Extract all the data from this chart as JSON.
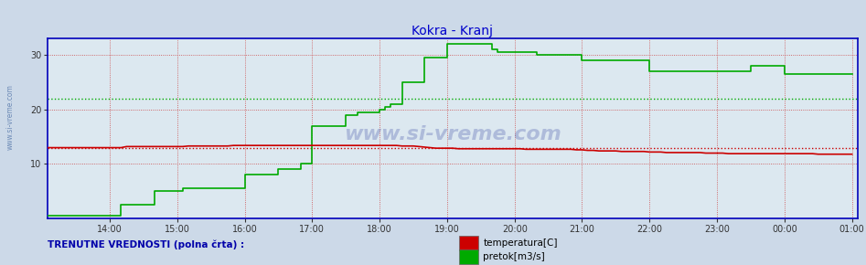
{
  "title": "Kokra - Kranj",
  "title_color": "#0000cc",
  "bg_color": "#ccd9e8",
  "plot_bg_color": "#dce8f0",
  "ylim": [
    0,
    33
  ],
  "yticks": [
    10,
    20,
    30
  ],
  "xtick_labels": [
    "14:00",
    "15:00",
    "16:00",
    "17:00",
    "18:00",
    "19:00",
    "20:00",
    "21:00",
    "22:00",
    "23:00",
    "00:00",
    "01:00"
  ],
  "xtick_positions": [
    14,
    15,
    16,
    17,
    18,
    19,
    20,
    21,
    22,
    23,
    24,
    25
  ],
  "xlim": [
    13.08,
    25.08
  ],
  "grid_color": "#cc4444",
  "hline_red_y": 13.0,
  "hline_green_y": 22.0,
  "watermark": "www.si-vreme.com",
  "legend_text1": "temperatura[C]",
  "legend_text2": "pretok[m3/s]",
  "legend_color1": "#cc0000",
  "legend_color2": "#00aa00",
  "footer_text": "TRENUTNE VREDNOSTI (polna črta) :",
  "axis_color": "#0000bb",
  "red_x": [
    13.0,
    13.083,
    13.167,
    13.25,
    13.333,
    13.417,
    13.5,
    13.583,
    13.667,
    13.75,
    13.833,
    13.917,
    14.0,
    14.083,
    14.167,
    14.25,
    14.333,
    14.417,
    14.5,
    14.583,
    14.667,
    14.75,
    14.833,
    14.917,
    15.0,
    15.083,
    15.167,
    15.25,
    15.333,
    15.417,
    15.5,
    15.583,
    15.667,
    15.75,
    15.833,
    15.917,
    16.0,
    16.083,
    16.167,
    16.25,
    16.333,
    16.417,
    16.5,
    16.583,
    16.667,
    16.75,
    16.833,
    16.917,
    17.0,
    17.083,
    17.167,
    17.25,
    17.333,
    17.417,
    17.5,
    17.583,
    17.667,
    17.75,
    17.833,
    17.917,
    18.0,
    18.083,
    18.167,
    18.25,
    18.333,
    18.417,
    18.5,
    18.583,
    18.667,
    18.75,
    18.833,
    18.917,
    19.0,
    19.083,
    19.167,
    19.25,
    19.333,
    19.417,
    19.5,
    19.583,
    19.667,
    19.75,
    19.833,
    19.917,
    20.0,
    20.083,
    20.167,
    20.25,
    20.333,
    20.417,
    20.5,
    20.583,
    20.667,
    20.75,
    20.833,
    20.917,
    21.0,
    21.083,
    21.167,
    21.25,
    21.333,
    21.417,
    21.5,
    21.583,
    21.667,
    21.75,
    21.833,
    21.917,
    22.0,
    22.083,
    22.167,
    22.25,
    22.333,
    22.417,
    22.5,
    22.583,
    22.667,
    22.75,
    22.833,
    22.917,
    23.0,
    23.083,
    23.167,
    23.25,
    23.333,
    23.417,
    23.5,
    23.583,
    23.667,
    23.75,
    23.833,
    23.917,
    24.0,
    24.083,
    24.167,
    24.25,
    24.333,
    24.417,
    24.5,
    24.583,
    24.667,
    24.75,
    24.833,
    24.917,
    25.0
  ],
  "red_y": [
    13.0,
    13.0,
    13.0,
    13.0,
    13.0,
    13.0,
    13.0,
    13.0,
    13.0,
    13.0,
    13.0,
    13.0,
    13.0,
    13.0,
    13.0,
    13.2,
    13.2,
    13.2,
    13.2,
    13.2,
    13.2,
    13.2,
    13.2,
    13.2,
    13.2,
    13.2,
    13.3,
    13.3,
    13.3,
    13.3,
    13.3,
    13.3,
    13.3,
    13.3,
    13.4,
    13.4,
    13.4,
    13.4,
    13.4,
    13.4,
    13.4,
    13.4,
    13.4,
    13.4,
    13.4,
    13.4,
    13.4,
    13.4,
    13.4,
    13.4,
    13.4,
    13.4,
    13.4,
    13.4,
    13.4,
    13.4,
    13.4,
    13.4,
    13.4,
    13.4,
    13.4,
    13.4,
    13.4,
    13.4,
    13.3,
    13.3,
    13.3,
    13.2,
    13.1,
    13.0,
    12.9,
    12.9,
    12.9,
    12.9,
    12.8,
    12.8,
    12.8,
    12.8,
    12.8,
    12.8,
    12.8,
    12.8,
    12.8,
    12.8,
    12.8,
    12.8,
    12.7,
    12.7,
    12.7,
    12.7,
    12.7,
    12.7,
    12.7,
    12.7,
    12.7,
    12.6,
    12.6,
    12.5,
    12.5,
    12.4,
    12.4,
    12.4,
    12.4,
    12.3,
    12.3,
    12.3,
    12.3,
    12.3,
    12.2,
    12.2,
    12.2,
    12.1,
    12.1,
    12.1,
    12.1,
    12.1,
    12.1,
    12.1,
    12.0,
    12.0,
    12.0,
    12.0,
    11.9,
    11.9,
    11.9,
    11.9,
    11.9,
    11.9,
    11.9,
    11.9,
    11.9,
    11.9,
    11.9,
    11.9,
    11.9,
    11.9,
    11.9,
    11.9,
    11.8,
    11.8,
    11.8,
    11.8,
    11.8,
    11.8,
    11.8
  ],
  "green_x": [
    13.0,
    13.083,
    13.167,
    13.25,
    13.333,
    13.417,
    13.5,
    13.583,
    13.667,
    13.75,
    13.833,
    13.917,
    14.0,
    14.083,
    14.167,
    14.25,
    14.333,
    14.417,
    14.5,
    14.583,
    14.667,
    14.75,
    14.833,
    14.917,
    15.0,
    15.083,
    15.167,
    15.25,
    15.333,
    15.417,
    15.5,
    15.583,
    15.667,
    15.75,
    15.833,
    15.917,
    16.0,
    16.083,
    16.167,
    16.25,
    16.333,
    16.417,
    16.5,
    16.583,
    16.667,
    16.75,
    16.833,
    16.917,
    17.0,
    17.083,
    17.167,
    17.25,
    17.333,
    17.417,
    17.5,
    17.583,
    17.667,
    17.75,
    17.833,
    17.917,
    18.0,
    18.083,
    18.167,
    18.25,
    18.333,
    18.417,
    18.5,
    18.583,
    18.667,
    18.75,
    18.833,
    18.917,
    19.0,
    19.083,
    19.167,
    19.25,
    19.333,
    19.417,
    19.5,
    19.583,
    19.667,
    19.75,
    19.833,
    19.917,
    20.0,
    20.083,
    20.167,
    20.25,
    20.333,
    20.417,
    20.5,
    20.583,
    20.667,
    20.75,
    20.833,
    20.917,
    21.0,
    21.083,
    21.167,
    21.25,
    21.333,
    21.417,
    21.5,
    21.583,
    21.667,
    21.75,
    21.833,
    21.917,
    22.0,
    22.083,
    22.167,
    22.25,
    22.333,
    22.417,
    22.5,
    22.583,
    22.667,
    22.75,
    22.833,
    22.917,
    23.0,
    23.083,
    23.167,
    23.25,
    23.333,
    23.417,
    23.5,
    23.583,
    23.667,
    23.75,
    23.833,
    23.917,
    24.0,
    24.083,
    24.167,
    24.25,
    24.333,
    24.417,
    24.5,
    24.583,
    24.667,
    24.75,
    24.833,
    24.917,
    25.0
  ],
  "green_y": [
    0.5,
    0.5,
    0.5,
    0.5,
    0.5,
    0.5,
    0.5,
    0.5,
    0.5,
    0.5,
    0.5,
    0.5,
    0.5,
    0.5,
    2.5,
    2.5,
    2.5,
    2.5,
    2.5,
    2.5,
    5.0,
    5.0,
    5.0,
    5.0,
    5.0,
    5.5,
    5.5,
    5.5,
    5.5,
    5.5,
    5.5,
    5.5,
    5.5,
    5.5,
    5.5,
    5.5,
    8.0,
    8.0,
    8.0,
    8.0,
    8.0,
    8.0,
    9.0,
    9.0,
    9.0,
    9.0,
    10.0,
    10.0,
    17.0,
    17.0,
    17.0,
    17.0,
    17.0,
    17.0,
    19.0,
    19.0,
    19.5,
    19.5,
    19.5,
    19.5,
    20.0,
    20.5,
    21.0,
    21.0,
    25.0,
    25.0,
    25.0,
    25.0,
    29.5,
    29.5,
    29.5,
    29.5,
    32.0,
    32.0,
    32.0,
    32.0,
    32.0,
    32.0,
    32.0,
    32.0,
    31.0,
    30.5,
    30.5,
    30.5,
    30.5,
    30.5,
    30.5,
    30.5,
    30.0,
    30.0,
    30.0,
    30.0,
    30.0,
    30.0,
    30.0,
    30.0,
    29.0,
    29.0,
    29.0,
    29.0,
    29.0,
    29.0,
    29.0,
    29.0,
    29.0,
    29.0,
    29.0,
    29.0,
    27.0,
    27.0,
    27.0,
    27.0,
    27.0,
    27.0,
    27.0,
    27.0,
    27.0,
    27.0,
    27.0,
    27.0,
    27.0,
    27.0,
    27.0,
    27.0,
    27.0,
    27.0,
    28.0,
    28.0,
    28.0,
    28.0,
    28.0,
    28.0,
    26.5,
    26.5,
    26.5,
    26.5,
    26.5,
    26.5,
    26.5,
    26.5,
    26.5,
    26.5,
    26.5,
    26.5,
    26.5
  ]
}
